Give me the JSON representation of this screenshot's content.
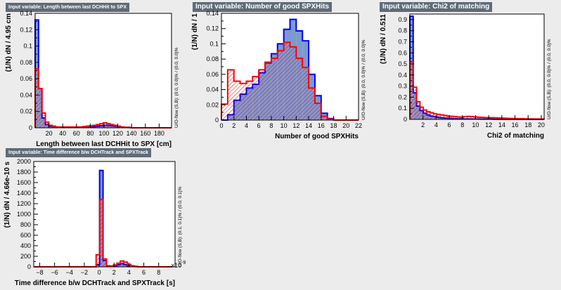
{
  "chart_data": [
    {
      "type": "bar",
      "title": "Input variable: Length between last DCHHit to SPX",
      "xlabel": "Length between last DCHHit to SPX  [cm]",
      "ylabel": "(1/N) dN / 4.95 cm",
      "overflow_label": "U/O-flow (S,B): (0.0, 0.0)% / (0.0, 0.0)%",
      "xlim": [
        0,
        198
      ],
      "ylim": [
        0,
        0.14
      ],
      "xticks": [
        20,
        40,
        60,
        80,
        100,
        120,
        140,
        160,
        180
      ],
      "xtick_labels": [
        "20",
        "40",
        "60",
        "80",
        "100",
        "120",
        "140",
        "160",
        "180"
      ],
      "yticks": [
        0,
        0.02,
        0.04,
        0.06,
        0.08,
        0.1,
        0.12,
        0.14
      ],
      "ytick_labels": [
        "0",
        "0.02",
        "0.04",
        "0.06",
        "0.08",
        "0.1",
        "0.12",
        "0.14"
      ],
      "bin_edges": [
        0,
        4.95,
        9.9,
        14.85,
        19.8,
        24.75,
        29.7,
        34.65,
        39.6,
        44.55,
        49.5,
        54.45,
        59.4,
        64.35,
        69.3,
        74.25,
        79.2,
        84.15,
        89.1,
        94.05,
        99.0,
        103.95,
        108.9,
        113.85,
        118.8,
        123.75,
        128.7,
        133.65,
        138.6,
        143.55,
        148.5,
        153.45,
        158.4,
        163.35,
        168.3,
        173.25,
        178.2,
        183.15,
        188.1,
        193.05,
        198.0
      ],
      "signal": [
        0.132,
        0.048,
        0.012,
        0.004,
        0.002,
        0.001,
        0.001,
        0.0005,
        0.0005,
        0.0005,
        0.0005,
        0.0005,
        0.0005,
        0.0005,
        0.0005,
        0.001,
        0.001,
        0.0015,
        0.002,
        0.0025,
        0.003,
        0.003,
        0.0025,
        0.002,
        0.0015,
        0.001,
        0.0005,
        0.0005,
        0,
        0,
        0,
        0,
        0,
        0,
        0,
        0,
        0,
        0,
        0,
        0
      ],
      "background": [
        0.072,
        0.048,
        0.018,
        0.007,
        0.003,
        0.002,
        0.001,
        0.001,
        0.001,
        0.001,
        0.001,
        0.001,
        0.001,
        0.001,
        0.0015,
        0.002,
        0.0025,
        0.003,
        0.004,
        0.005,
        0.006,
        0.005,
        0.004,
        0.003,
        0.002,
        0.001,
        0.0005,
        0.0005,
        0,
        0,
        0,
        0,
        0,
        0,
        0,
        0,
        0,
        0,
        0,
        0
      ]
    },
    {
      "type": "bar",
      "title": "Input variable: Number of good SPXHits",
      "xlabel": "Number of good SPXHits",
      "ylabel": "(1/N) dN / 1",
      "overflow_label": "U/O-flow (S,B): (0.0, 0.0)% / (0.0, 0.0)%",
      "xlim": [
        0,
        22
      ],
      "ylim": [
        0,
        0.14
      ],
      "xticks": [
        0,
        2,
        4,
        6,
        8,
        10,
        12,
        14,
        16,
        18,
        20,
        22
      ],
      "xtick_labels": [
        "0",
        "2",
        "4",
        "6",
        "8",
        "10",
        "12",
        "14",
        "16",
        "18",
        "20",
        "22"
      ],
      "yticks": [
        0,
        0.02,
        0.04,
        0.06,
        0.08,
        0.1,
        0.12,
        0.14
      ],
      "ytick_labels": [
        "0",
        "0.02",
        "0.04",
        "0.06",
        "0.08",
        "0.1",
        "0.12",
        "0.14"
      ],
      "bin_edges": [
        0,
        1,
        2,
        3,
        4,
        5,
        6,
        7,
        8,
        9,
        10,
        11,
        12,
        13,
        14,
        15,
        16,
        17,
        18,
        19,
        20,
        21,
        22
      ],
      "signal": [
        0,
        0.007,
        0.026,
        0.034,
        0.042,
        0.047,
        0.062,
        0.075,
        0.087,
        0.1,
        0.119,
        0.132,
        0.117,
        0.104,
        0.06,
        0.032,
        0.009,
        0.002,
        0,
        0,
        0,
        0
      ],
      "background": [
        0.021,
        0.066,
        0.051,
        0.048,
        0.051,
        0.057,
        0.066,
        0.076,
        0.081,
        0.091,
        0.102,
        0.096,
        0.081,
        0.069,
        0.042,
        0.022,
        0.005,
        0.001,
        0,
        0,
        0,
        0
      ]
    },
    {
      "type": "bar",
      "title": "Input variable: Chi2 of matching",
      "xlabel": "Chi2 of matching",
      "ylabel": "(1/N) dN / 0.511",
      "overflow_label": "U/O-flow (S,B): (0.0, 0.0)% / (0.0, 0.0)%",
      "xlim": [
        0,
        20.44
      ],
      "ylim": [
        0,
        0.95
      ],
      "xticks": [
        2,
        4,
        6,
        8,
        10,
        12,
        14,
        16,
        18,
        20
      ],
      "xtick_labels": [
        "2",
        "4",
        "6",
        "8",
        "10",
        "12",
        "14",
        "16",
        "18",
        "20"
      ],
      "yticks": [
        0,
        0.1,
        0.2,
        0.3,
        0.4,
        0.5,
        0.6,
        0.7,
        0.8,
        0.9
      ],
      "ytick_labels": [
        "0",
        "0.1",
        "0.2",
        "0.3",
        "0.4",
        "0.5",
        "0.6",
        "0.7",
        "0.8",
        "0.9"
      ],
      "bin_edges": [
        0,
        0.511,
        1.022,
        1.533,
        2.044,
        2.555,
        3.066,
        3.577,
        4.088,
        4.599,
        5.11,
        5.621,
        6.132,
        6.643,
        7.154,
        7.665,
        8.176,
        8.687,
        9.198,
        9.709,
        10.22,
        10.731,
        11.242,
        11.753,
        12.264,
        12.775,
        13.286,
        13.797,
        14.308,
        14.819,
        15.33,
        15.841,
        16.352,
        16.863,
        17.374,
        17.885,
        18.396,
        18.907,
        19.418,
        19.929,
        20.44
      ],
      "signal": [
        0.93,
        0.24,
        0.12,
        0.08,
        0.055,
        0.04,
        0.03,
        0.025,
        0.02,
        0.015,
        0.012,
        0.01,
        0.008,
        0.006,
        0.005,
        0.005,
        0.004,
        0.004,
        0.003,
        0.003,
        0.003,
        0.002,
        0.002,
        0.002,
        0.002,
        0.001,
        0.001,
        0.001,
        0.001,
        0.001,
        0.001,
        0.001,
        0,
        0,
        0,
        0,
        0,
        0,
        0,
        0
      ],
      "background": [
        0.52,
        0.29,
        0.16,
        0.11,
        0.085,
        0.07,
        0.06,
        0.05,
        0.045,
        0.04,
        0.035,
        0.03,
        0.028,
        0.025,
        0.022,
        0.02,
        0.025,
        0.027,
        0.025,
        0.022,
        0.02,
        0.018,
        0.017,
        0.016,
        0.015,
        0.014,
        0.012,
        0.011,
        0.01,
        0.009,
        0.008,
        0.007,
        0.006,
        0.006,
        0.005,
        0.005,
        0.004,
        0.004,
        0.003,
        0.003
      ]
    },
    {
      "type": "bar",
      "title": "Input variable: Time difference b/w DCHTrack and SPXTrack",
      "xlabel": "Time difference b/w DCHTrack and SPXTrack  [s]",
      "ylabel": "(1/N) dN / 4.66e-10 s",
      "overflow_label": "U/O-flow (S,B): (0.1, 0.1)% / (0.0, 0.1)%",
      "x_scale_label": "×10",
      "x_exponent": "-9",
      "xlim": [
        -8.8,
        10.2
      ],
      "ylim": [
        0,
        2000
      ],
      "xticks": [
        -8,
        -6,
        -4,
        -2,
        0,
        2,
        4,
        6,
        8
      ],
      "xtick_labels": [
        "−8",
        "−6",
        "−4",
        "−2",
        "0",
        "2",
        "4",
        "6",
        "8"
      ],
      "yticks": [
        0,
        200,
        400,
        600,
        800,
        1000,
        1200,
        1400,
        1600,
        1800,
        2000
      ],
      "ytick_labels": [
        "0",
        "200",
        "400",
        "600",
        "800",
        "1000",
        "1200",
        "1400",
        "1600",
        "1800",
        "2000"
      ],
      "bin_edges": [
        -8.8,
        -8.334,
        -7.868,
        -7.402,
        -6.936,
        -6.47,
        -6.004,
        -5.538,
        -5.072,
        -4.606,
        -4.14,
        -3.674,
        -3.208,
        -2.742,
        -2.276,
        -1.81,
        -1.344,
        -0.878,
        -0.412,
        0.054,
        0.52,
        0.986,
        1.452,
        1.918,
        2.384,
        2.85,
        3.316,
        3.782,
        4.248,
        4.714,
        5.18,
        5.646,
        6.112,
        6.578,
        7.044,
        7.51,
        7.976,
        8.442,
        8.908,
        9.374,
        9.84
      ],
      "signal": [
        0,
        0,
        0,
        0,
        0,
        0,
        0,
        0,
        0,
        0,
        0,
        0,
        0,
        0,
        0,
        0,
        0,
        0,
        40,
        1830,
        120,
        15,
        10,
        20,
        40,
        60,
        40,
        20,
        10,
        5,
        0,
        0,
        0,
        0,
        0,
        0,
        0,
        0,
        0,
        0
      ],
      "background": [
        0,
        0,
        0,
        0,
        0,
        0,
        0,
        0,
        0,
        0,
        0,
        0,
        0,
        0,
        0,
        0,
        0,
        0,
        230,
        1280,
        150,
        20,
        15,
        35,
        70,
        110,
        90,
        45,
        20,
        10,
        0,
        0,
        0,
        0,
        0,
        0,
        0,
        0,
        0,
        0
      ]
    }
  ],
  "colors": {
    "signal_fill": "#7d99d1",
    "signal_line": "#0000ee",
    "background_line": "#ff0000",
    "title_box": "#5f6b78",
    "frame_bg": "#ffffff",
    "canvas_bg": "#ececec"
  }
}
